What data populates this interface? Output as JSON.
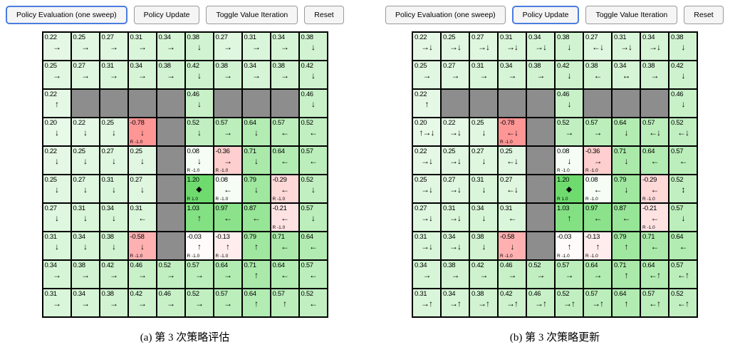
{
  "colors": {
    "accent": "#4a7de0",
    "wall": "#8d8d8d",
    "grid_line": "#000000",
    "positive_strong": "#6fd66f",
    "negative_strong": "#f49c9c",
    "cell_base": "#e6f6e6"
  },
  "panels": [
    {
      "id": "left",
      "caption": "(a) 第 3 次策略评估",
      "buttons": [
        {
          "label": "Policy Evaluation (one sweep)",
          "active": true
        },
        {
          "label": "Policy Update",
          "active": false
        },
        {
          "label": "Toggle Value Iteration",
          "active": false
        },
        {
          "label": "Reset",
          "active": false
        }
      ],
      "grid": [
        [
          {
            "v": "0.22",
            "a": "→"
          },
          {
            "v": "0.25",
            "a": "→"
          },
          {
            "v": "0.27",
            "a": "→"
          },
          {
            "v": "0.31",
            "a": "→"
          },
          {
            "v": "0.34",
            "a": "→"
          },
          {
            "v": "0.38",
            "a": "↓"
          },
          {
            "v": "0.27",
            "a": "→"
          },
          {
            "v": "0.31",
            "a": "→"
          },
          {
            "v": "0.34",
            "a": "→"
          },
          {
            "v": "0.38",
            "a": "↓"
          }
        ],
        [
          {
            "v": "0.25",
            "a": "→"
          },
          {
            "v": "0.27",
            "a": "→"
          },
          {
            "v": "0.31",
            "a": "→"
          },
          {
            "v": "0.34",
            "a": "→"
          },
          {
            "v": "0.38",
            "a": "→"
          },
          {
            "v": "0.42",
            "a": "↓"
          },
          {
            "v": "0.38",
            "a": "→"
          },
          {
            "v": "0.34",
            "a": "→"
          },
          {
            "v": "0.38",
            "a": "→"
          },
          {
            "v": "0.42",
            "a": "↓"
          }
        ],
        [
          {
            "v": "0.22",
            "a": "↑"
          },
          {
            "w": 1
          },
          {
            "w": 1
          },
          {
            "w": 1
          },
          {
            "w": 1
          },
          {
            "v": "0.46",
            "a": "↓"
          },
          {
            "w": 1
          },
          {
            "w": 1
          },
          {
            "w": 1
          },
          {
            "v": "0.46",
            "a": "↓"
          }
        ],
        [
          {
            "v": "0.20",
            "a": "↓"
          },
          {
            "v": "0.22",
            "a": "↓"
          },
          {
            "v": "0.25",
            "a": "↓"
          },
          {
            "v": "-0.78",
            "a": "↓",
            "r": "R -1.0"
          },
          {
            "w": 1
          },
          {
            "v": "0.52",
            "a": "↓"
          },
          {
            "v": "0.57",
            "a": "→"
          },
          {
            "v": "0.64",
            "a": "↓"
          },
          {
            "v": "0.57",
            "a": "←"
          },
          {
            "v": "0.52",
            "a": "←"
          }
        ],
        [
          {
            "v": "0.22",
            "a": "↓"
          },
          {
            "v": "0.25",
            "a": "↓"
          },
          {
            "v": "0.27",
            "a": "↓"
          },
          {
            "v": "0.25",
            "a": "↓"
          },
          {
            "w": 1
          },
          {
            "v": "0.08",
            "a": "↓",
            "r": "R -1.0"
          },
          {
            "v": "-0.36",
            "a": "→",
            "r": "R -1.0"
          },
          {
            "v": "0.71",
            "a": "↓"
          },
          {
            "v": "0.64",
            "a": "←"
          },
          {
            "v": "0.57",
            "a": "←"
          }
        ],
        [
          {
            "v": "0.25",
            "a": "↓"
          },
          {
            "v": "0.27",
            "a": "↓"
          },
          {
            "v": "0.31",
            "a": "↓"
          },
          {
            "v": "0.27",
            "a": "↓"
          },
          {
            "w": 1
          },
          {
            "v": "1.20",
            "d": 1,
            "r": "R 1.0"
          },
          {
            "v": "0.08",
            "a": "←",
            "r": "R -1.0"
          },
          {
            "v": "0.79",
            "a": "↓"
          },
          {
            "v": "-0.29",
            "a": "←",
            "r": "R -1.0"
          },
          {
            "v": "0.52",
            "a": "↓"
          }
        ],
        [
          {
            "v": "0.27",
            "a": "↓"
          },
          {
            "v": "0.31",
            "a": "↓"
          },
          {
            "v": "0.34",
            "a": "↓"
          },
          {
            "v": "0.31",
            "a": "←"
          },
          {
            "w": 1
          },
          {
            "v": "1.03",
            "a": "↑"
          },
          {
            "v": "0.97",
            "a": "←"
          },
          {
            "v": "0.87",
            "a": "←"
          },
          {
            "v": "-0.21",
            "a": "←",
            "r": "R -1.0"
          },
          {
            "v": "0.57",
            "a": "↓"
          }
        ],
        [
          {
            "v": "0.31",
            "a": "↓"
          },
          {
            "v": "0.34",
            "a": "↓"
          },
          {
            "v": "0.38",
            "a": "↓"
          },
          {
            "v": "-0.58",
            "a": "↓",
            "r": "R -1.0"
          },
          {
            "w": 1
          },
          {
            "v": "-0.03",
            "a": "↑",
            "r": "R -1.0"
          },
          {
            "v": "-0.13",
            "a": "↑",
            "r": "R -1.0"
          },
          {
            "v": "0.79",
            "a": "↑"
          },
          {
            "v": "0.71",
            "a": "←"
          },
          {
            "v": "0.64",
            "a": "←"
          }
        ],
        [
          {
            "v": "0.34",
            "a": "→"
          },
          {
            "v": "0.38",
            "a": "→"
          },
          {
            "v": "0.42",
            "a": "→"
          },
          {
            "v": "0.46",
            "a": "→"
          },
          {
            "v": "0.52",
            "a": "→"
          },
          {
            "v": "0.57",
            "a": "→"
          },
          {
            "v": "0.64",
            "a": "→"
          },
          {
            "v": "0.71",
            "a": "↑"
          },
          {
            "v": "0.64",
            "a": "←"
          },
          {
            "v": "0.57",
            "a": "←"
          }
        ],
        [
          {
            "v": "0.31",
            "a": "→"
          },
          {
            "v": "0.34",
            "a": "→"
          },
          {
            "v": "0.38",
            "a": "→"
          },
          {
            "v": "0.42",
            "a": "→"
          },
          {
            "v": "0.46",
            "a": "→"
          },
          {
            "v": "0.52",
            "a": "→"
          },
          {
            "v": "0.57",
            "a": "→"
          },
          {
            "v": "0.64",
            "a": "↑"
          },
          {
            "v": "0.57",
            "a": "↑"
          },
          {
            "v": "0.52",
            "a": "←"
          }
        ]
      ]
    },
    {
      "id": "right",
      "caption": "(b) 第 3 次策略更新",
      "buttons": [
        {
          "label": "Policy Evaluation (one sweep)",
          "active": false
        },
        {
          "label": "Policy Update",
          "active": true
        },
        {
          "label": "Toggle Value Iteration",
          "active": false
        },
        {
          "label": "Reset",
          "active": false
        }
      ],
      "grid": [
        [
          {
            "v": "0.22",
            "a": "→↓"
          },
          {
            "v": "0.25",
            "a": "→↓"
          },
          {
            "v": "0.27",
            "a": "→↓"
          },
          {
            "v": "0.31",
            "a": "→↓"
          },
          {
            "v": "0.34",
            "a": "→↓"
          },
          {
            "v": "0.38",
            "a": "↓"
          },
          {
            "v": "0.27",
            "a": "←↓"
          },
          {
            "v": "0.31",
            "a": "→↓"
          },
          {
            "v": "0.34",
            "a": "→↓"
          },
          {
            "v": "0.38",
            "a": "↓"
          }
        ],
        [
          {
            "v": "0.25",
            "a": "→"
          },
          {
            "v": "0.27",
            "a": "→"
          },
          {
            "v": "0.31",
            "a": "→"
          },
          {
            "v": "0.34",
            "a": "→"
          },
          {
            "v": "0.38",
            "a": "→"
          },
          {
            "v": "0.42",
            "a": "↓"
          },
          {
            "v": "0.38",
            "a": "←"
          },
          {
            "v": "0.34",
            "a": "↔"
          },
          {
            "v": "0.38",
            "a": "→"
          },
          {
            "v": "0.42",
            "a": "↓"
          }
        ],
        [
          {
            "v": "0.22",
            "a": "↑"
          },
          {
            "w": 1
          },
          {
            "w": 1
          },
          {
            "w": 1
          },
          {
            "w": 1
          },
          {
            "v": "0.46",
            "a": "↓"
          },
          {
            "w": 1
          },
          {
            "w": 1
          },
          {
            "w": 1
          },
          {
            "v": "0.46",
            "a": "↓"
          }
        ],
        [
          {
            "v": "0.20",
            "a": "↑→↓"
          },
          {
            "v": "0.22",
            "a": "→↓"
          },
          {
            "v": "0.25",
            "a": "↓"
          },
          {
            "v": "-0.78",
            "a": "←↓",
            "r": "R -1.0"
          },
          {
            "w": 1
          },
          {
            "v": "0.52",
            "a": "→"
          },
          {
            "v": "0.57",
            "a": "→"
          },
          {
            "v": "0.64",
            "a": "↓"
          },
          {
            "v": "0.57",
            "a": "←↓"
          },
          {
            "v": "0.52",
            "a": "←↓"
          }
        ],
        [
          {
            "v": "0.22",
            "a": "→↓"
          },
          {
            "v": "0.25",
            "a": "→↓"
          },
          {
            "v": "0.27",
            "a": "↓"
          },
          {
            "v": "0.25",
            "a": "←↓"
          },
          {
            "w": 1
          },
          {
            "v": "0.08",
            "a": "↓",
            "r": "R -1.0"
          },
          {
            "v": "-0.36",
            "a": "→",
            "r": "R -1.0"
          },
          {
            "v": "0.71",
            "a": "↓"
          },
          {
            "v": "0.64",
            "a": "←"
          },
          {
            "v": "0.57",
            "a": "←"
          }
        ],
        [
          {
            "v": "0.25",
            "a": "→↓"
          },
          {
            "v": "0.27",
            "a": "→↓"
          },
          {
            "v": "0.31",
            "a": "↓"
          },
          {
            "v": "0.27",
            "a": "←↓"
          },
          {
            "w": 1
          },
          {
            "v": "1.20",
            "d": 1,
            "r": "R 1.0"
          },
          {
            "v": "0.08",
            "a": "←",
            "r": "R -1.0"
          },
          {
            "v": "0.79",
            "a": "↓"
          },
          {
            "v": "-0.29",
            "a": "←",
            "r": "R -1.0"
          },
          {
            "v": "0.52",
            "a": "↕"
          }
        ],
        [
          {
            "v": "0.27",
            "a": "→↓"
          },
          {
            "v": "0.31",
            "a": "→↓"
          },
          {
            "v": "0.34",
            "a": "↓"
          },
          {
            "v": "0.31",
            "a": "←"
          },
          {
            "w": 1
          },
          {
            "v": "1.03",
            "a": "↑"
          },
          {
            "v": "0.97",
            "a": "←"
          },
          {
            "v": "0.87",
            "a": "←"
          },
          {
            "v": "-0.21",
            "a": "←",
            "r": "R -1.0"
          },
          {
            "v": "0.57",
            "a": "↓"
          }
        ],
        [
          {
            "v": "0.31",
            "a": "→↓"
          },
          {
            "v": "0.34",
            "a": "→↓"
          },
          {
            "v": "0.38",
            "a": "↓"
          },
          {
            "v": "-0.58",
            "a": "↓",
            "r": "R -1.0"
          },
          {
            "w": 1
          },
          {
            "v": "-0.03",
            "a": "↑",
            "r": "R -1.0"
          },
          {
            "v": "-0.13",
            "a": "↑",
            "r": "R -1.0"
          },
          {
            "v": "0.79",
            "a": "↑"
          },
          {
            "v": "0.71",
            "a": "←"
          },
          {
            "v": "0.64",
            "a": "←"
          }
        ],
        [
          {
            "v": "0.34",
            "a": "→"
          },
          {
            "v": "0.38",
            "a": "→"
          },
          {
            "v": "0.42",
            "a": "→"
          },
          {
            "v": "0.46",
            "a": "→"
          },
          {
            "v": "0.52",
            "a": "→"
          },
          {
            "v": "0.57",
            "a": "→"
          },
          {
            "v": "0.64",
            "a": "→"
          },
          {
            "v": "0.71",
            "a": "↑"
          },
          {
            "v": "0.64",
            "a": "←↑"
          },
          {
            "v": "0.57",
            "a": "←↑"
          }
        ],
        [
          {
            "v": "0.31",
            "a": "→↑"
          },
          {
            "v": "0.34",
            "a": "→↑"
          },
          {
            "v": "0.38",
            "a": "→↑"
          },
          {
            "v": "0.42",
            "a": "→↑"
          },
          {
            "v": "0.46",
            "a": "→↑"
          },
          {
            "v": "0.52",
            "a": "→↑"
          },
          {
            "v": "0.57",
            "a": "→↑"
          },
          {
            "v": "0.64",
            "a": "↑"
          },
          {
            "v": "0.57",
            "a": "←↑"
          },
          {
            "v": "0.52",
            "a": "←↑"
          }
        ]
      ]
    }
  ]
}
